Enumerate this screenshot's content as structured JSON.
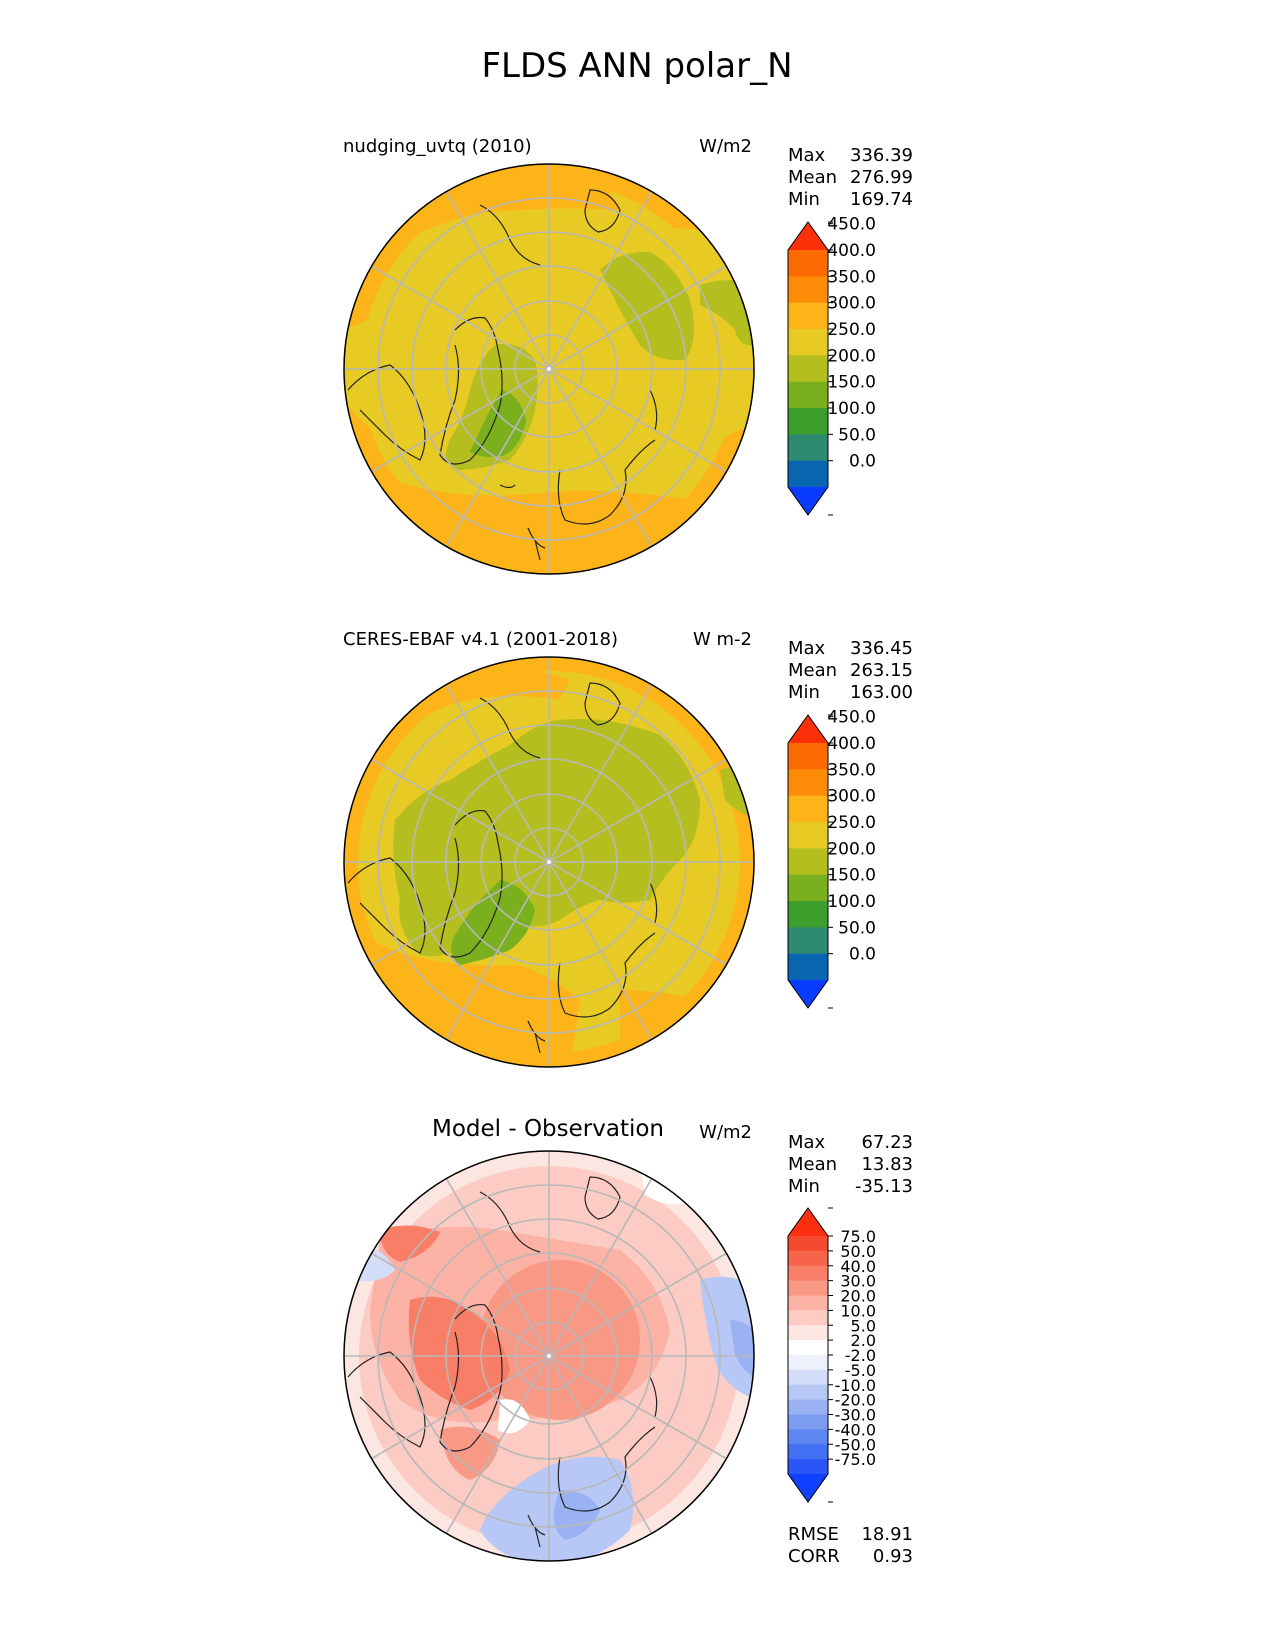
{
  "figure": {
    "title": "FLDS ANN polar_N"
  },
  "chart_data": [
    {
      "type": "heatmap",
      "projection": "north-polar-stereographic",
      "title": "nudging_uvtq (2010)",
      "units": "W/m2",
      "stats": [
        {
          "label": "Max",
          "value": "336.39"
        },
        {
          "label": "Mean",
          "value": "276.99"
        },
        {
          "label": "Min",
          "value": "169.74"
        }
      ],
      "colorbar": {
        "ticks": [
          "0.0",
          "50.0",
          "100.0",
          "150.0",
          "200.0",
          "250.0",
          "300.0",
          "350.0",
          "400.0",
          "450.0"
        ],
        "colors": [
          "#0a3cff",
          "#0866b0",
          "#2e8a6e",
          "#3c9f2c",
          "#7aaf1e",
          "#b4be1e",
          "#e8ca24",
          "#fcb418",
          "#fc8c08",
          "#fc6a04",
          "#fc3008"
        ]
      }
    },
    {
      "type": "heatmap",
      "projection": "north-polar-stereographic",
      "title": "CERES-EBAF v4.1 (2001-2018)",
      "units": "W m-2",
      "stats": [
        {
          "label": "Max",
          "value": "336.45"
        },
        {
          "label": "Mean",
          "value": "263.15"
        },
        {
          "label": "Min",
          "value": "163.00"
        }
      ],
      "colorbar": {
        "ticks": [
          "0.0",
          "50.0",
          "100.0",
          "150.0",
          "200.0",
          "250.0",
          "300.0",
          "350.0",
          "400.0",
          "450.0"
        ],
        "colors": [
          "#0a3cff",
          "#0866b0",
          "#2e8a6e",
          "#3c9f2c",
          "#7aaf1e",
          "#b4be1e",
          "#e8ca24",
          "#fcb418",
          "#fc8c08",
          "#fc6a04",
          "#fc3008"
        ]
      }
    },
    {
      "type": "heatmap",
      "projection": "north-polar-stereographic",
      "title": "Model - Observation",
      "units": "W/m2",
      "stats": [
        {
          "label": "Max",
          "value": "67.23"
        },
        {
          "label": "Mean",
          "value": "13.83"
        },
        {
          "label": "Min",
          "value": "-35.13"
        }
      ],
      "metrics": [
        {
          "label": "RMSE",
          "value": "18.91"
        },
        {
          "label": "CORR",
          "value": "0.93"
        }
      ],
      "colorbar": {
        "ticks": [
          "-75.0",
          "-50.0",
          "-40.0",
          "-30.0",
          "-20.0",
          "-10.0",
          "-5.0",
          "-2.0",
          "2.0",
          "5.0",
          "10.0",
          "20.0",
          "30.0",
          "40.0",
          "50.0",
          "75.0"
        ],
        "colors": [
          "#1040ff",
          "#2a56f8",
          "#4470f4",
          "#5e86f2",
          "#7c9cf2",
          "#9ab2f4",
          "#b8c8f6",
          "#d4ddf8",
          "#eef0fb",
          "#ffffff",
          "#fce6e2",
          "#fcccc4",
          "#fcb2a4",
          "#fa9886",
          "#f87e68",
          "#f6644a",
          "#f44a30",
          "#fc3010"
        ]
      }
    }
  ]
}
